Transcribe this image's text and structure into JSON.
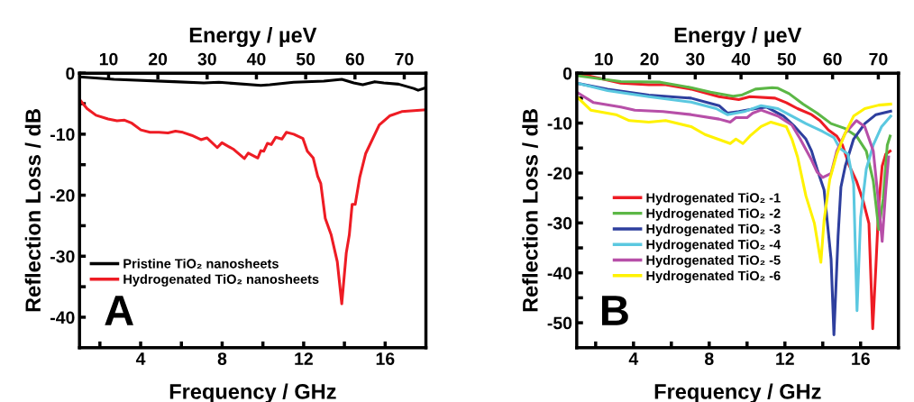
{
  "chart_data": [
    {
      "type": "line",
      "xlabel": "Frequency / GHz",
      "x2label": "Energy / µeV",
      "ylabel": "Reflection Loss / dB",
      "xlim": [
        1,
        18
      ],
      "xticks": [
        {
          "value": 2,
          "label": null
        },
        4,
        {
          "value": 6,
          "label": null
        },
        8,
        {
          "value": 10,
          "label": null
        },
        12,
        {
          "value": 14,
          "label": null
        },
        16
      ],
      "x2lim": [
        4.1,
        74.4
      ],
      "x2ticks": [
        10,
        20,
        30,
        40,
        50,
        60,
        70
      ],
      "ylim": [
        -45,
        0
      ],
      "yticks": [
        0,
        {
          "value": -5,
          "label": null
        },
        -10,
        {
          "value": -15,
          "label": null
        },
        -20,
        {
          "value": -25,
          "label": null
        },
        -30,
        {
          "value": -35,
          "label": null
        },
        -40
      ],
      "legend": "lower left",
      "annotations": [
        "A"
      ],
      "series": [
        {
          "name": "Pristine TiO₂ nanosheets",
          "color": "#000000",
          "x": [
            1.0,
            2.69,
            5.63,
            7.1,
            7.84,
            9.9,
            10.34,
            11.51,
            12.99,
            13.87,
            14.46,
            14.9,
            15.49,
            15.93,
            16.66,
            17.4,
            17.62,
            17.99
          ],
          "values": [
            -0.6,
            -1.0,
            -1.4,
            -1.6,
            -1.5,
            -2.0,
            -1.9,
            -1.5,
            -1.3,
            -1.0,
            -1.6,
            -1.9,
            -1.4,
            -1.6,
            -1.8,
            -2.5,
            -2.8,
            -2.4
          ]
        },
        {
          "name": "Hydrogenated TiO₂ nanosheets",
          "color": "#ee1c24",
          "x": [
            1.0,
            1.37,
            1.81,
            2.4,
            2.84,
            3.21,
            3.57,
            4.01,
            4.46,
            4.9,
            5.34,
            5.71,
            6.07,
            6.51,
            6.96,
            7.25,
            7.76,
            7.99,
            8.57,
            9.09,
            9.28,
            9.75,
            9.9,
            10.04,
            10.22,
            10.41,
            10.63,
            10.93,
            11.15,
            11.51,
            11.96,
            12.18,
            12.47,
            12.69,
            12.84,
            13.06,
            13.35,
            13.65,
            13.87,
            14.09,
            14.24,
            14.38,
            14.53,
            14.75,
            15.04,
            15.71,
            16.22,
            16.81,
            17.99
          ],
          "values": [
            -4.3,
            -5.8,
            -6.9,
            -7.5,
            -7.8,
            -7.7,
            -8.2,
            -9.3,
            -9.7,
            -9.7,
            -9.8,
            -9.5,
            -9.7,
            -10.2,
            -10.9,
            -10.6,
            -12.2,
            -11.4,
            -12.5,
            -14.0,
            -13.1,
            -13.9,
            -12.7,
            -12.8,
            -11.5,
            -11.7,
            -10.5,
            -10.8,
            -9.7,
            -10.0,
            -10.7,
            -12.8,
            -13.9,
            -16.9,
            -18.1,
            -23.8,
            -26.5,
            -30.9,
            -37.8,
            -29.5,
            -26.5,
            -21.5,
            -21.5,
            -17.1,
            -13.2,
            -8.5,
            -7.0,
            -6.3,
            -6.0
          ]
        }
      ]
    },
    {
      "type": "line",
      "xlabel": "Frequency / GHz",
      "x2label": "Energy / µeV",
      "ylabel": "Reflection Loss / dB",
      "xlim": [
        1,
        18
      ],
      "xticks": [
        {
          "value": 2,
          "label": null
        },
        4,
        {
          "value": 6,
          "label": null
        },
        8,
        {
          "value": 10,
          "label": null
        },
        12,
        {
          "value": 14,
          "label": null
        },
        16
      ],
      "x2lim": [
        4.1,
        74.4
      ],
      "x2ticks": [
        10,
        20,
        30,
        40,
        50,
        60,
        70
      ],
      "ylim": [
        -55,
        0
      ],
      "yticks": [
        0,
        {
          "value": -5,
          "label": null
        },
        -10,
        {
          "value": -15,
          "label": null
        },
        -20,
        {
          "value": -25,
          "label": null
        },
        -30,
        {
          "value": -35,
          "label": null
        },
        -40,
        {
          "value": -45,
          "label": null
        },
        -50
      ],
      "legend": "left",
      "annotations": [
        "B"
      ],
      "series": [
        {
          "name": "Hydrogenated TiO₂ -1",
          "color": "#ee1c24",
          "x": [
            1.0,
            3.33,
            4.81,
            5.7,
            7.04,
            8.52,
            9.56,
            10.15,
            11.48,
            12.07,
            12.67,
            13.41,
            13.85,
            14.3,
            14.74,
            15.04,
            15.41,
            15.78,
            16.15,
            16.44,
            16.64,
            16.81,
            16.96,
            17.14,
            17.33,
            17.56
          ],
          "values": [
            0,
            -2.0,
            -2.3,
            -2.3,
            -3.2,
            -4.7,
            -5.3,
            -4.7,
            -5.0,
            -5.9,
            -7.1,
            -8.3,
            -9.5,
            -11.4,
            -12.6,
            -14.4,
            -18.6,
            -21.6,
            -25.8,
            -30.1,
            -51.2,
            -38.5,
            -26.4,
            -18.6,
            -16.2,
            -15.6
          ]
        },
        {
          "name": "Hydrogenated TiO₂ -2",
          "color": "#5cb746",
          "x": [
            1.0,
            3.33,
            5.41,
            7.04,
            8.07,
            9.26,
            9.7,
            10.44,
            11.33,
            11.63,
            12.22,
            12.96,
            13.7,
            14.44,
            15.19,
            15.78,
            16.3,
            16.67,
            16.96,
            17.19,
            17.41,
            17.56
          ],
          "values": [
            -0.5,
            -1.7,
            -1.8,
            -2.9,
            -3.8,
            -4.6,
            -4.4,
            -3.2,
            -2.9,
            -3.0,
            -4.1,
            -6.2,
            -8.0,
            -10.1,
            -11.1,
            -12.6,
            -15.6,
            -21.6,
            -31.3,
            -25.2,
            -14.4,
            -12.6
          ]
        },
        {
          "name": "Hydrogenated TiO₂ -3",
          "color": "#2e3f9e",
          "x": [
            1.0,
            2.63,
            4.81,
            7.04,
            8.52,
            8.96,
            9.56,
            10.44,
            11.04,
            11.93,
            12.52,
            13.11,
            13.41,
            13.7,
            14.07,
            14.44,
            14.59,
            14.81,
            14.96,
            15.19,
            15.63,
            16.22,
            16.81,
            17.59
          ],
          "values": [
            -2.0,
            -3.2,
            -4.4,
            -5.0,
            -6.5,
            -8.0,
            -7.7,
            -7.1,
            -6.8,
            -8.6,
            -10.7,
            -13.2,
            -15.6,
            -19.2,
            -23.4,
            -37.3,
            -52.4,
            -32.6,
            -22.8,
            -18.6,
            -13.2,
            -10.1,
            -8.3,
            -7.6
          ]
        },
        {
          "name": "Hydrogenated TiO₂ -4",
          "color": "#5bc8e0",
          "x": [
            1.0,
            2.63,
            4.81,
            7.04,
            8.37,
            8.96,
            9.85,
            10.74,
            11.63,
            12.22,
            13.11,
            14.0,
            14.59,
            14.89,
            15.33,
            15.63,
            15.81,
            16.0,
            16.3,
            16.67,
            17.11,
            17.59
          ],
          "values": [
            -2.0,
            -3.5,
            -4.7,
            -5.8,
            -7.1,
            -8.3,
            -7.7,
            -6.5,
            -7.1,
            -8.3,
            -10.1,
            -11.7,
            -12.9,
            -15.0,
            -16.2,
            -22.2,
            -47.6,
            -28.9,
            -19.2,
            -14.4,
            -10.7,
            -8.6
          ]
        },
        {
          "name": "Hydrogenated TiO₂ -5",
          "color": "#b74fa8",
          "x": [
            1.0,
            1.89,
            3.33,
            4.07,
            5.56,
            7.04,
            8.52,
            9.11,
            9.41,
            10.0,
            10.3,
            10.74,
            11.63,
            12.37,
            12.81,
            13.41,
            13.7,
            14.0,
            14.44,
            14.74,
            15.19,
            15.78,
            16.22,
            16.67,
            16.96,
            17.14,
            17.33,
            17.48
          ],
          "values": [
            -3.8,
            -5.9,
            -6.8,
            -7.4,
            -7.7,
            -8.3,
            -9.2,
            -9.8,
            -8.9,
            -8.9,
            -8.0,
            -7.4,
            -8.6,
            -10.4,
            -13.2,
            -17.4,
            -19.8,
            -20.9,
            -20.1,
            -15.6,
            -12.0,
            -9.5,
            -10.7,
            -15.6,
            -26.4,
            -33.7,
            -23.4,
            -16.8
          ]
        },
        {
          "name": "Hydrogenated TiO₂ -6",
          "color": "#fff200",
          "x": [
            1.0,
            1.74,
            3.07,
            3.78,
            4.81,
            5.7,
            7.04,
            7.78,
            9.11,
            9.41,
            9.78,
            10.15,
            10.74,
            11.26,
            12.07,
            12.37,
            12.67,
            13.11,
            13.56,
            13.9,
            14.07,
            14.37,
            14.74,
            15.19,
            15.63,
            16.22,
            16.96,
            17.59
          ],
          "values": [
            -4.7,
            -7.4,
            -8.3,
            -9.5,
            -9.8,
            -9.5,
            -10.7,
            -12.3,
            -14.1,
            -13.2,
            -14.1,
            -12.6,
            -10.7,
            -9.8,
            -10.7,
            -13.2,
            -16.8,
            -24.6,
            -30.1,
            -37.9,
            -29.5,
            -21.3,
            -16.2,
            -12.0,
            -8.6,
            -7.1,
            -6.4,
            -6.2
          ]
        }
      ]
    }
  ]
}
